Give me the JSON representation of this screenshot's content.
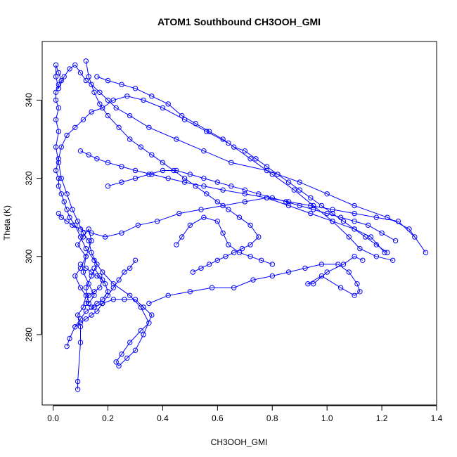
{
  "chart_data": {
    "type": "scatter",
    "title": "ATOM1 Southbound CH3OOH_GMI",
    "xlabel": "CH3OOH_GMI",
    "ylabel": "Theta (K)",
    "xlim": [
      -0.04,
      1.4
    ],
    "ylim": [
      262,
      355
    ],
    "x_ticks": [
      0.0,
      0.2,
      0.4,
      0.6,
      0.8,
      1.0,
      1.2,
      1.4
    ],
    "x_tick_labels": [
      "0.0",
      "0.2",
      "0.4",
      "0.6",
      "0.8",
      "1.0",
      "1.2",
      "1.4"
    ],
    "y_ticks": [
      280,
      300,
      320,
      340
    ],
    "y_tick_labels": [
      "280",
      "300",
      "320",
      "340"
    ],
    "series_color": "#0000ff",
    "marker": "open-circle",
    "connected": true,
    "grid": false,
    "series": [
      {
        "x": [
          0.09,
          0.09,
          0.1,
          0.1,
          0.09,
          0.11,
          0.12,
          0.1,
          0.08,
          0.1,
          0.12,
          0.09,
          0.11,
          0.13,
          0.14,
          0.12,
          0.11,
          0.13,
          0.15,
          0.13,
          0.12,
          0.14,
          0.16,
          0.14,
          0.13,
          0.11,
          0.09,
          0.07,
          0.05,
          0.03,
          0.02,
          0.01,
          0.02,
          0.01,
          0.02,
          0.01,
          0.01,
          0.02,
          0.03,
          0.02,
          0.01,
          0.01,
          0.02,
          0.04,
          0.06,
          0.08,
          0.1,
          0.12,
          0.14,
          0.17,
          0.2,
          0.23,
          0.28,
          0.35,
          0.45,
          0.55,
          0.65,
          0.78,
          0.9,
          1.0,
          1.1,
          1.22,
          1.3,
          1.36
        ],
        "y": [
          266,
          268,
          278,
          282,
          285,
          287,
          290,
          292,
          295,
          297,
          300,
          303,
          305,
          307,
          304,
          300,
          296,
          293,
          290,
          288,
          292,
          295,
          298,
          301,
          304,
          306,
          309,
          312,
          316,
          320,
          324,
          328,
          332,
          335,
          338,
          340,
          342,
          344,
          345,
          347,
          349,
          346,
          343,
          346,
          348,
          349,
          347,
          345,
          344,
          342,
          340,
          338,
          336,
          333,
          330,
          327,
          324,
          322,
          319,
          316,
          313,
          310,
          307,
          301
        ]
      },
      {
        "x": [
          0.05,
          0.06,
          0.08,
          0.1,
          0.12,
          0.15,
          0.18,
          0.22,
          0.26,
          0.3,
          0.33,
          0.36,
          0.33,
          0.3,
          0.27,
          0.24,
          0.23,
          0.25,
          0.28,
          0.32,
          0.35,
          0.32,
          0.28,
          0.22,
          0.18,
          0.15,
          0.12,
          0.1,
          0.08,
          0.06,
          0.05,
          0.04,
          0.03,
          0.02,
          0.02,
          0.01,
          0.02,
          0.03,
          0.05,
          0.08,
          0.11,
          0.14,
          0.18,
          0.22,
          0.27,
          0.33,
          0.4,
          0.48,
          0.56,
          0.64,
          0.72,
          0.8,
          0.88,
          0.95,
          1.02,
          1.08,
          1.12,
          1.18,
          1.24
        ],
        "y": [
          277,
          279,
          282,
          284,
          286,
          287,
          288,
          289,
          289,
          289,
          287,
          285,
          280,
          276,
          274,
          272,
          273,
          275,
          278,
          281,
          283,
          287,
          290,
          293,
          296,
          299,
          302,
          305,
          308,
          310,
          312,
          314,
          316,
          318,
          320,
          322,
          325,
          328,
          331,
          333,
          335,
          337,
          338,
          340,
          341,
          340,
          338,
          335,
          332,
          329,
          325,
          321,
          317,
          313,
          309,
          305,
          302,
          300,
          299
        ]
      },
      {
        "x": [
          0.35,
          0.42,
          0.5,
          0.58,
          0.66,
          0.73,
          0.8,
          0.86,
          0.92,
          0.98,
          1.04,
          1.08,
          1.11,
          1.12,
          1.1,
          1.05,
          0.98,
          0.93,
          0.95,
          1.0,
          1.06,
          1.1,
          1.13
        ],
        "y": [
          288,
          290,
          291,
          292,
          292,
          294,
          295,
          296,
          297,
          298,
          298,
          296,
          293,
          291,
          290,
          292,
          295,
          293,
          293,
          296,
          298,
          300,
          299
        ]
      },
      {
        "x": [
          0.51,
          0.54,
          0.57,
          0.6,
          0.63,
          0.66,
          0.69,
          0.72,
          0.75,
          0.72,
          0.68,
          0.64,
          0.6,
          0.56,
          0.52,
          0.48,
          0.44,
          0.4,
          0.36,
          0.32,
          0.28,
          0.24,
          0.2,
          0.17,
          0.15,
          0.13,
          0.12
        ],
        "y": [
          296,
          297,
          298,
          299,
          300,
          301,
          302,
          303,
          305,
          308,
          310,
          312,
          314,
          316,
          318,
          320,
          322,
          324,
          326,
          328,
          330,
          333,
          336,
          339,
          342,
          346,
          350
        ]
      },
      {
        "x": [
          0.1,
          0.13,
          0.16,
          0.2,
          0.25,
          0.3,
          0.36,
          0.42,
          0.48,
          0.55,
          0.62,
          0.7,
          0.78,
          0.86,
          0.94,
          1.02,
          1.1,
          1.18,
          1.26,
          1.32
        ],
        "y": [
          327,
          326,
          325,
          324,
          323,
          322,
          321,
          320,
          319,
          318,
          317,
          316,
          315,
          314,
          313,
          312,
          311,
          310,
          309,
          305
        ]
      },
      {
        "x": [
          0.02,
          0.03,
          0.05,
          0.07,
          0.1,
          0.14,
          0.19,
          0.25,
          0.31,
          0.38,
          0.46,
          0.54,
          0.62,
          0.7,
          0.78,
          0.86,
          0.94,
          1.02,
          1.1,
          1.16,
          1.21
        ],
        "y": [
          311,
          310,
          309,
          308,
          307,
          306,
          305,
          306,
          308,
          309,
          311,
          312,
          313,
          314,
          315,
          313,
          311,
          309,
          307,
          305,
          301
        ]
      },
      {
        "x": [
          0.2,
          0.25,
          0.3,
          0.35,
          0.4,
          0.45,
          0.5,
          0.55,
          0.6,
          0.65,
          0.7,
          0.75,
          0.8,
          0.85,
          0.9,
          0.95,
          1.0,
          1.05,
          1.1,
          1.15,
          1.2,
          1.25
        ],
        "y": [
          318,
          319,
          320,
          321,
          322,
          322,
          321,
          320,
          319,
          318,
          317,
          316,
          315,
          314,
          313,
          312,
          311,
          310,
          309,
          308,
          306,
          304
        ]
      },
      {
        "x": [
          0.16,
          0.2,
          0.25,
          0.3,
          0.36,
          0.42,
          0.47,
          0.52,
          0.57,
          0.62,
          0.66,
          0.7,
          0.74,
          0.78,
          0.82,
          0.86,
          0.9,
          0.94,
          0.98,
          1.02,
          1.06,
          1.1,
          1.14,
          1.18,
          1.22
        ],
        "y": [
          346,
          345,
          344,
          343,
          341,
          339,
          336,
          334,
          332,
          330,
          328,
          327,
          325,
          323,
          321,
          319,
          317,
          315,
          313,
          311,
          309,
          307,
          305,
          303,
          301
        ]
      },
      {
        "x": [
          0.08,
          0.1,
          0.12,
          0.14,
          0.16,
          0.18,
          0.2,
          0.22,
          0.24,
          0.26,
          0.28,
          0.3
        ],
        "y": [
          282,
          283,
          284,
          285,
          286,
          288,
          290,
          292,
          294,
          296,
          297,
          299
        ]
      },
      {
        "x": [
          0.1,
          0.12,
          0.14,
          0.16,
          0.18,
          0.17,
          0.15,
          0.13,
          0.12,
          0.14,
          0.16,
          0.18,
          0.2,
          0.19,
          0.17,
          0.15
        ],
        "y": [
          298,
          297,
          296,
          295,
          294,
          292,
          291,
          290,
          288,
          287,
          288,
          289,
          291,
          293,
          295,
          297
        ]
      },
      {
        "x": [
          0.45,
          0.47,
          0.5,
          0.55,
          0.6,
          0.62,
          0.64,
          0.68,
          0.72,
          0.76,
          0.8
        ],
        "y": [
          303,
          305,
          308,
          310,
          309,
          306,
          303,
          301,
          300,
          299,
          298
        ]
      }
    ]
  }
}
